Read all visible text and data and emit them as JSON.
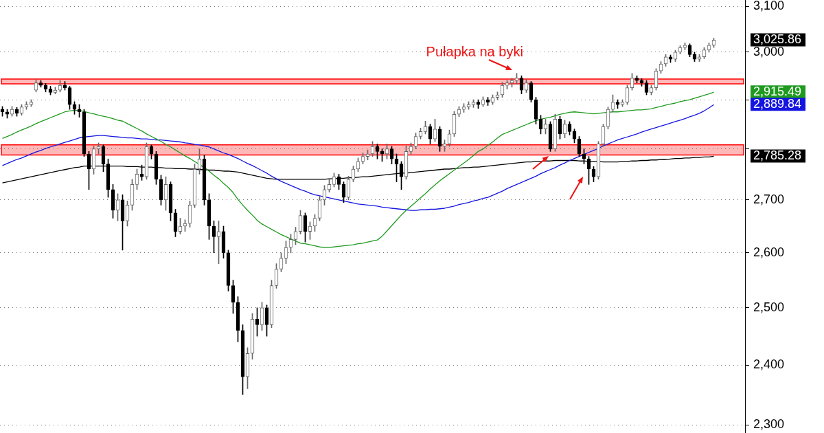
{
  "chart_data": {
    "type": "candlestick",
    "categories": [
      null,
      null,
      null,
      null,
      null,
      null,
      null,
      null,
      null,
      null,
      null,
      null,
      null,
      null,
      null,
      null,
      null,
      null,
      null,
      null,
      null,
      null,
      null,
      null,
      null,
      null,
      null,
      null,
      null,
      null,
      null,
      null,
      null,
      null,
      null,
      null,
      null,
      null,
      null,
      null,
      null,
      null,
      null,
      null,
      null,
      null,
      null,
      null,
      null,
      null,
      null,
      null,
      null,
      null,
      null,
      null,
      null,
      null,
      null,
      null,
      null,
      null,
      null,
      null,
      null,
      null,
      null,
      null,
      null,
      null,
      null,
      null,
      null,
      null,
      null,
      null,
      null,
      null,
      null,
      null,
      null,
      null,
      null,
      null,
      null,
      null,
      null,
      null,
      null,
      null,
      null,
      null,
      null,
      null,
      null,
      null,
      null,
      null,
      null,
      null,
      null,
      null,
      null,
      null,
      null,
      null,
      null,
      null,
      null,
      null,
      null,
      null,
      null,
      null,
      null,
      null,
      null,
      null,
      null,
      null,
      null,
      null,
      null,
      null,
      null,
      null,
      null,
      null,
      null,
      null,
      null,
      null,
      null,
      null,
      null,
      null,
      null,
      null,
      null,
      null,
      null,
      null,
      null,
      null,
      null,
      null,
      null,
      null,
      null,
      null,
      null,
      null,
      null,
      null,
      null
    ],
    "ohlc": [
      [
        2880,
        2886,
        2866,
        2875
      ],
      [
        2875,
        2880,
        2862,
        2870
      ],
      [
        2870,
        2886,
        2866,
        2880
      ],
      [
        2880,
        2884,
        2866,
        2872
      ],
      [
        2872,
        2890,
        2868,
        2885
      ],
      [
        2885,
        2896,
        2880,
        2890
      ],
      [
        2890,
        2900,
        2886,
        2895
      ],
      [
        2920,
        2942,
        2916,
        2935
      ],
      [
        2935,
        2940,
        2926,
        2930
      ],
      [
        2930,
        2934,
        2916,
        2922
      ],
      [
        2922,
        2928,
        2910,
        2915
      ],
      [
        2915,
        2926,
        2912,
        2920
      ],
      [
        2920,
        2940,
        2916,
        2930
      ],
      [
        2930,
        2938,
        2920,
        2925
      ],
      [
        2925,
        2928,
        2880,
        2890
      ],
      [
        2890,
        2896,
        2870,
        2880
      ],
      [
        2880,
        2890,
        2864,
        2875
      ],
      [
        2875,
        2880,
        2785,
        2790
      ],
      [
        2790,
        2795,
        2720,
        2760
      ],
      [
        2760,
        2806,
        2750,
        2800
      ],
      [
        2800,
        2812,
        2790,
        2805
      ],
      [
        2805,
        2808,
        2755,
        2770
      ],
      [
        2770,
        2780,
        2705,
        2720
      ],
      [
        2720,
        2730,
        2665,
        2680
      ],
      [
        2680,
        2712,
        2660,
        2700
      ],
      [
        2700,
        2710,
        2605,
        2660
      ],
      [
        2660,
        2698,
        2650,
        2690
      ],
      [
        2690,
        2740,
        2680,
        2730
      ],
      [
        2730,
        2760,
        2720,
        2750
      ],
      [
        2750,
        2768,
        2738,
        2745
      ],
      [
        2745,
        2812,
        2740,
        2805
      ],
      [
        2805,
        2808,
        2780,
        2790
      ],
      [
        2790,
        2795,
        2730,
        2740
      ],
      [
        2740,
        2748,
        2690,
        2700
      ],
      [
        2700,
        2745,
        2680,
        2730
      ],
      [
        2730,
        2735,
        2660,
        2675
      ],
      [
        2675,
        2682,
        2630,
        2640
      ],
      [
        2640,
        2665,
        2635,
        2650
      ],
      [
        2650,
        2662,
        2640,
        2655
      ],
      [
        2655,
        2698,
        2648,
        2690
      ],
      [
        2690,
        2770,
        2685,
        2760
      ],
      [
        2760,
        2800,
        2750,
        2780
      ],
      [
        2780,
        2788,
        2690,
        2700
      ],
      [
        2700,
        2712,
        2625,
        2650
      ],
      [
        2650,
        2660,
        2600,
        2630
      ],
      [
        2630,
        2660,
        2580,
        2640
      ],
      [
        2640,
        2650,
        2590,
        2600
      ],
      [
        2600,
        2605,
        2530,
        2540
      ],
      [
        2540,
        2550,
        2490,
        2510
      ],
      [
        2510,
        2520,
        2440,
        2460
      ],
      [
        2460,
        2470,
        2350,
        2380
      ],
      [
        2380,
        2430,
        2360,
        2420
      ],
      [
        2420,
        2490,
        2410,
        2480
      ],
      [
        2480,
        2500,
        2450,
        2470
      ],
      [
        2470,
        2510,
        2460,
        2500
      ],
      [
        2500,
        2505,
        2450,
        2470
      ],
      [
        2470,
        2550,
        2465,
        2540
      ],
      [
        2540,
        2580,
        2535,
        2570
      ],
      [
        2570,
        2600,
        2565,
        2590
      ],
      [
        2590,
        2622,
        2580,
        2610
      ],
      [
        2610,
        2635,
        2600,
        2625
      ],
      [
        2625,
        2648,
        2615,
        2640
      ],
      [
        2640,
        2680,
        2635,
        2670
      ],
      [
        2670,
        2675,
        2620,
        2640
      ],
      [
        2640,
        2658,
        2625,
        2650
      ],
      [
        2650,
        2672,
        2640,
        2665
      ],
      [
        2665,
        2708,
        2660,
        2700
      ],
      [
        2700,
        2728,
        2690,
        2720
      ],
      [
        2720,
        2740,
        2715,
        2730
      ],
      [
        2730,
        2752,
        2725,
        2745
      ],
      [
        2745,
        2750,
        2720,
        2730
      ],
      [
        2730,
        2735,
        2695,
        2705
      ],
      [
        2705,
        2746,
        2700,
        2740
      ],
      [
        2740,
        2766,
        2735,
        2760
      ],
      [
        2760,
        2782,
        2755,
        2775
      ],
      [
        2775,
        2792,
        2770,
        2785
      ],
      [
        2785,
        2798,
        2778,
        2790
      ],
      [
        2790,
        2815,
        2785,
        2805
      ],
      [
        2805,
        2810,
        2780,
        2795
      ],
      [
        2795,
        2800,
        2775,
        2790
      ],
      [
        2790,
        2810,
        2780,
        2800
      ],
      [
        2800,
        2805,
        2770,
        2780
      ],
      [
        2780,
        2790,
        2735,
        2770
      ],
      [
        2770,
        2775,
        2720,
        2745
      ],
      [
        2745,
        2806,
        2740,
        2795
      ],
      [
        2795,
        2812,
        2790,
        2805
      ],
      [
        2805,
        2832,
        2800,
        2825
      ],
      [
        2825,
        2842,
        2820,
        2835
      ],
      [
        2835,
        2856,
        2830,
        2845
      ],
      [
        2845,
        2850,
        2810,
        2820
      ],
      [
        2820,
        2860,
        2815,
        2840
      ],
      [
        2840,
        2845,
        2795,
        2805
      ],
      [
        2805,
        2818,
        2795,
        2810
      ],
      [
        2810,
        2838,
        2805,
        2830
      ],
      [
        2830,
        2876,
        2825,
        2870
      ],
      [
        2870,
        2886,
        2865,
        2880
      ],
      [
        2880,
        2892,
        2874,
        2885
      ],
      [
        2885,
        2896,
        2880,
        2890
      ],
      [
        2890,
        2900,
        2884,
        2895
      ],
      [
        2895,
        2900,
        2882,
        2890
      ],
      [
        2890,
        2906,
        2886,
        2900
      ],
      [
        2900,
        2905,
        2888,
        2895
      ],
      [
        2895,
        2910,
        2890,
        2905
      ],
      [
        2905,
        2916,
        2900,
        2910
      ],
      [
        2910,
        2936,
        2905,
        2930
      ],
      [
        2930,
        2940,
        2922,
        2935
      ],
      [
        2935,
        2945,
        2926,
        2940
      ],
      [
        2940,
        2955,
        2932,
        2945
      ],
      [
        2945,
        2950,
        2912,
        2920
      ],
      [
        2920,
        2942,
        2915,
        2935
      ],
      [
        2935,
        2938,
        2895,
        2900
      ],
      [
        2900,
        2905,
        2850,
        2860
      ],
      [
        2860,
        2868,
        2830,
        2840
      ],
      [
        2840,
        2860,
        2830,
        2850
      ],
      [
        2850,
        2855,
        2795,
        2800
      ],
      [
        2800,
        2870,
        2795,
        2860
      ],
      [
        2860,
        2866,
        2820,
        2830
      ],
      [
        2830,
        2858,
        2822,
        2850
      ],
      [
        2850,
        2855,
        2828,
        2835
      ],
      [
        2835,
        2840,
        2812,
        2820
      ],
      [
        2820,
        2825,
        2785,
        2790
      ],
      [
        2790,
        2800,
        2770,
        2780
      ],
      [
        2780,
        2785,
        2730,
        2760
      ],
      [
        2760,
        2765,
        2735,
        2745
      ],
      [
        2745,
        2815,
        2740,
        2810
      ],
      [
        2810,
        2850,
        2805,
        2845
      ],
      [
        2845,
        2885,
        2840,
        2880
      ],
      [
        2880,
        2910,
        2875,
        2895
      ],
      [
        2895,
        2900,
        2882,
        2890
      ],
      [
        2890,
        2900,
        2886,
        2895
      ],
      [
        2895,
        2930,
        2890,
        2925
      ],
      [
        2925,
        2955,
        2920,
        2945
      ],
      [
        2945,
        2950,
        2935,
        2940
      ],
      [
        2940,
        2944,
        2928,
        2935
      ],
      [
        2935,
        2940,
        2910,
        2915
      ],
      [
        2915,
        2930,
        2910,
        2925
      ],
      [
        2925,
        2965,
        2920,
        2960
      ],
      [
        2960,
        2980,
        2955,
        2975
      ],
      [
        2975,
        2995,
        2970,
        2990
      ],
      [
        2990,
        2994,
        2978,
        2985
      ],
      [
        2985,
        3004,
        2980,
        3000
      ],
      [
        3000,
        3014,
        2996,
        3010
      ],
      [
        3010,
        3020,
        3005,
        3015
      ],
      [
        3015,
        3018,
        2990,
        2995
      ],
      [
        2995,
        3000,
        2980,
        2985
      ],
      [
        2985,
        2995,
        2980,
        2990
      ],
      [
        2990,
        3010,
        2986,
        3005
      ],
      [
        3005,
        3020,
        3000,
        3015
      ],
      [
        3015,
        3030,
        3010,
        3025.86
      ],
      null,
      null,
      null,
      null,
      null,
      null
    ],
    "series": [
      {
        "type": "line",
        "color": "#1f9a1f",
        "values": [
          2821,
          2825,
          2829,
          2834,
          2838,
          2842,
          2846,
          2851,
          2855,
          2859,
          2863,
          2867,
          2871,
          2875,
          2877,
          2878,
          2878,
          2876,
          2873,
          2871,
          2868,
          2866,
          2864,
          2861,
          2858,
          2856,
          2851,
          2846,
          2841,
          2836,
          2830,
          2825,
          2820,
          2815,
          2809,
          2804,
          2798,
          2792,
          2786,
          2781,
          2775,
          2769,
          2763,
          2756,
          2748,
          2741,
          2732,
          2724,
          2714,
          2701,
          2690,
          2680,
          2671,
          2661,
          2654,
          2649,
          2644,
          2639,
          2634,
          2630,
          2626,
          2622,
          2618,
          2617,
          2615,
          2613,
          2611,
          2610,
          2610,
          2611,
          2612,
          2613,
          2614,
          2615,
          2617,
          2618,
          2620,
          2622,
          2624,
          2631,
          2641,
          2651,
          2661,
          2671,
          2680,
          2688,
          2696,
          2704,
          2712,
          2721,
          2729,
          2737,
          2744,
          2751,
          2758,
          2765,
          2772,
          2779,
          2787,
          2795,
          2800,
          2807,
          2814,
          2822,
          2829,
          2833,
          2837,
          2841,
          2845,
          2849,
          2853,
          2857,
          2860,
          2862,
          2864,
          2867,
          2870,
          2872,
          2874,
          2875,
          2874,
          2873,
          2872,
          2871,
          2872,
          2873,
          2874,
          2875,
          2875,
          2876,
          2877,
          2878,
          2879,
          2879,
          2880,
          2881,
          2884,
          2886,
          2889,
          2891,
          2893,
          2896,
          2898,
          2900,
          2903,
          2906,
          2909,
          2912,
          2915.49,
          null,
          null,
          null,
          null,
          null,
          null
        ]
      },
      {
        "type": "line",
        "color": "#1515e0",
        "values": [
          2767,
          2771,
          2775,
          2779,
          2782,
          2786,
          2790,
          2794,
          2797,
          2801,
          2804,
          2807,
          2810,
          2813,
          2816,
          2819,
          2822,
          2824,
          2825,
          2826,
          2827,
          2827,
          2826,
          2825,
          2824,
          2823,
          2822,
          2822,
          2821,
          2820,
          2820,
          2819,
          2818,
          2818,
          2817,
          2816,
          2815,
          2814,
          2812,
          2811,
          2809,
          2808,
          2806,
          2804,
          2800,
          2796,
          2792,
          2789,
          2785,
          2781,
          2776,
          2771,
          2767,
          2762,
          2757,
          2752,
          2746,
          2741,
          2736,
          2732,
          2728,
          2724,
          2720,
          2717,
          2713,
          2710,
          2708,
          2706,
          2704,
          2702,
          2700,
          2698,
          2696,
          2694,
          2692,
          2691,
          2690,
          2689,
          2688,
          2686,
          2685,
          2684,
          2683,
          2682,
          2681,
          2680,
          2680,
          2681,
          2681,
          2682,
          2682,
          2683,
          2684,
          2686,
          2688,
          2691,
          2693,
          2695,
          2698,
          2700,
          2703,
          2705,
          2709,
          2713,
          2717,
          2722,
          2726,
          2730,
          2734,
          2738,
          2742,
          2746,
          2751,
          2755,
          2759,
          2763,
          2768,
          2772,
          2777,
          2781,
          2785,
          2789,
          2793,
          2797,
          2801,
          2806,
          2810,
          2814,
          2818,
          2821,
          2824,
          2827,
          2830,
          2834,
          2837,
          2840,
          2843,
          2846,
          2849,
          2852,
          2855,
          2858,
          2861,
          2865,
          2868,
          2872,
          2877,
          2883,
          2889.84,
          null,
          null,
          null,
          null,
          null,
          null
        ]
      },
      {
        "type": "line",
        "color": "#000000",
        "values": [
          2733,
          2735,
          2737,
          2739,
          2741,
          2743,
          2745,
          2747,
          2749,
          2751,
          2753,
          2755,
          2757,
          2759,
          2761,
          2763,
          2764,
          2766,
          2766,
          2766,
          2766,
          2766,
          2766,
          2766,
          2766,
          2766,
          2765,
          2765,
          2765,
          2764,
          2764,
          2764,
          2763,
          2763,
          2762,
          2762,
          2761,
          2761,
          2761,
          2760,
          2760,
          2759,
          2759,
          2758,
          2758,
          2757,
          2756,
          2756,
          2755,
          2754,
          2752,
          2750,
          2748,
          2746,
          2744,
          2742,
          2741,
          2740,
          2740,
          2740,
          2740,
          2740,
          2740,
          2740,
          2740,
          2740,
          2740,
          2740,
          2741,
          2741,
          2742,
          2742,
          2743,
          2743,
          2744,
          2745,
          2745,
          2746,
          2747,
          2748,
          2749,
          2750,
          2751,
          2752,
          2752,
          2753,
          2754,
          2755,
          2756,
          2757,
          2758,
          2759,
          2760,
          2760,
          2761,
          2762,
          2763,
          2763,
          2764,
          2764,
          2765,
          2766,
          2767,
          2768,
          2769,
          2770,
          2771,
          2772,
          2773,
          2774,
          2774,
          2775,
          2775,
          2776,
          2776,
          2777,
          2777,
          2777,
          2777,
          2777,
          2776,
          2776,
          2775,
          2775,
          2775,
          2774,
          2774,
          2774,
          2774,
          2775,
          2775,
          2776,
          2776,
          2777,
          2777,
          2778,
          2778,
          2779,
          2779,
          2780,
          2781,
          2781,
          2782,
          2782,
          2783,
          2783,
          2784,
          2784,
          2785.28,
          null,
          null,
          null,
          null,
          null,
          null
        ]
      }
    ],
    "log": true,
    "ylim": [
      2300,
      3100
    ],
    "yticks": [
      {
        "value": 2300,
        "label": "2,300"
      },
      {
        "value": 2400,
        "label": "2,400"
      },
      {
        "value": 2500,
        "label": "2,500"
      },
      {
        "value": 2600,
        "label": "2,600"
      },
      {
        "value": 2700,
        "label": "2,700"
      },
      {
        "value": 2800,
        "label": null
      },
      {
        "value": 2900,
        "label": null
      },
      {
        "value": 3000,
        "label": "3,000"
      },
      {
        "value": 3100,
        "label": "3,100"
      },
      {
        "value": 3025.86,
        "label": "3,025.86"
      },
      {
        "value": 2915.49,
        "label": "2,915.49"
      },
      {
        "value": 2889.84,
        "label": "2,889.84"
      },
      {
        "value": 2785.28,
        "label": "2,785.28"
      }
    ],
    "grid": "y",
    "tick_labels": "y",
    "bands": [
      {
        "axis": "y",
        "from": 2933,
        "to": 2943,
        "color": "#ff0000"
      },
      {
        "axis": "y",
        "from": 2788,
        "to": 2808,
        "color": "#ff0000"
      }
    ],
    "annotations": [
      "Pułapka na byki"
    ]
  }
}
